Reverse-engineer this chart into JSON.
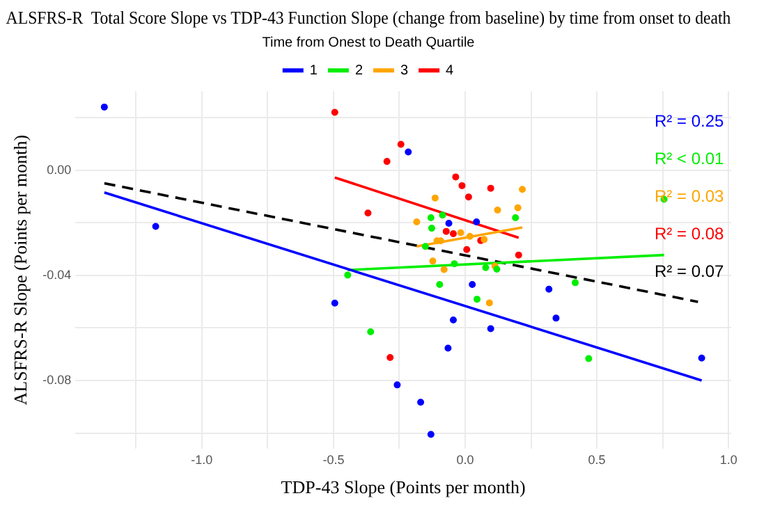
{
  "chart_data": {
    "type": "scatter",
    "title": "ALSFRS-R  Total Score Slope vs TDP-43 Function Slope (change from baseline) by time from onset to death",
    "xlabel": "TDP-43 Slope (Points per month)",
    "ylabel": "ALSFRS-R Slope (Points per month)",
    "legend_title": "Time from Onest to Death Quartile",
    "legend": "top",
    "grid": true,
    "xlim": [
      -1.48,
      1.01
    ],
    "xticks": [
      {
        "value": -1.25,
        "label": null
      },
      {
        "value": -1,
        "label": "-1.0"
      },
      {
        "value": -0.75,
        "label": null
      },
      {
        "value": -0.5,
        "label": "-0.5"
      },
      {
        "value": -0.25,
        "label": null
      },
      {
        "value": 0,
        "label": "0.0"
      },
      {
        "value": 0.25,
        "label": null
      },
      {
        "value": 0.5,
        "label": "0.5"
      },
      {
        "value": 0.75,
        "label": null
      },
      {
        "value": 1,
        "label": "1.0"
      }
    ],
    "ylim": [
      -0.106,
      0.03
    ],
    "yticks": [
      {
        "value": 0.02,
        "label": null
      },
      {
        "value": 0,
        "label": "0.00"
      },
      {
        "value": -0.02,
        "label": null
      },
      {
        "value": -0.04,
        "label": "-0.04"
      },
      {
        "value": -0.06,
        "label": null
      },
      {
        "value": -0.08,
        "label": "-0.08"
      },
      {
        "value": -0.1,
        "label": null
      }
    ],
    "series": [
      {
        "name": "1",
        "marker": "circle",
        "color": "#0000ff",
        "x": [
          -1.37,
          -0.216,
          -1.175,
          -0.495,
          -0.258,
          -0.169,
          -0.13,
          -0.062,
          0.043,
          0.027,
          -0.045,
          0.097,
          -0.065,
          0.318,
          0.345,
          0.898
        ],
        "values": [
          0.024,
          0.0069,
          -0.0214,
          -0.0506,
          -0.0817,
          -0.0883,
          -0.1005,
          -0.0202,
          -0.0197,
          -0.0435,
          -0.057,
          -0.0603,
          -0.0677,
          -0.0453,
          -0.0563,
          -0.0715
        ]
      },
      {
        "name": "2",
        "marker": "circle",
        "color": "#00ee00",
        "x": [
          -0.13,
          -0.127,
          -0.446,
          -0.359,
          0.191,
          -0.086,
          -0.041,
          0.078,
          0.12,
          -0.097,
          0.045,
          0.418,
          0.469,
          0.755,
          -0.151
        ],
        "values": [
          -0.0181,
          -0.0221,
          -0.0399,
          -0.0615,
          -0.0181,
          -0.0171,
          -0.0356,
          -0.0371,
          -0.0377,
          -0.0435,
          -0.0491,
          -0.0428,
          -0.0717,
          -0.0111,
          -0.029
        ]
      },
      {
        "name": "3",
        "marker": "circle",
        "color": "#ffa500",
        "x": [
          -0.184,
          -0.114,
          -0.123,
          0.217,
          0.123,
          0.2,
          -0.017,
          0.018,
          0.072,
          -0.107,
          -0.093,
          0.113,
          -0.08,
          0.092
        ],
        "values": [
          -0.0197,
          -0.0106,
          -0.0346,
          -0.0073,
          -0.0152,
          -0.0143,
          -0.0238,
          -0.0252,
          -0.0264,
          -0.0269,
          -0.0269,
          -0.0365,
          -0.0378,
          -0.0505
        ]
      },
      {
        "name": "4",
        "marker": "circle",
        "color": "#ff0000",
        "x": [
          -0.495,
          -0.244,
          -0.297,
          -0.369,
          -0.285,
          -0.036,
          -0.012,
          0.013,
          0.097,
          -0.072,
          -0.045,
          0.059,
          0.006,
          0.203
        ],
        "values": [
          0.022,
          0.0098,
          0.0033,
          -0.0163,
          -0.0713,
          -0.0026,
          -0.0059,
          -0.0102,
          -0.0069,
          -0.0233,
          -0.0242,
          -0.0268,
          -0.0302,
          -0.0323
        ]
      },
      {
        "type": "line",
        "color": "#0000ff",
        "x": [
          -1.37,
          0.898
        ],
        "values": [
          -0.0085,
          -0.08
        ]
      },
      {
        "type": "line",
        "color": "#00ee00",
        "x": [
          -0.446,
          0.755
        ],
        "values": [
          -0.038,
          -0.0323
        ]
      },
      {
        "type": "line",
        "color": "#ffa500",
        "x": [
          -0.184,
          0.217
        ],
        "values": [
          -0.029,
          -0.0218
        ]
      },
      {
        "type": "line",
        "color": "#ff0000",
        "x": [
          -0.495,
          0.203
        ],
        "values": [
          -0.0028,
          -0.0257
        ]
      },
      {
        "type": "line",
        "color": "#000000",
        "line_style": "dashed",
        "x": [
          -1.37,
          0.884
        ],
        "values": [
          -0.005,
          -0.0501
        ]
      }
    ],
    "annotations": [
      "R² = 0.25",
      "R² < 0.01",
      "R² = 0.03",
      "R² = 0.08",
      "R² = 0.07"
    ]
  }
}
